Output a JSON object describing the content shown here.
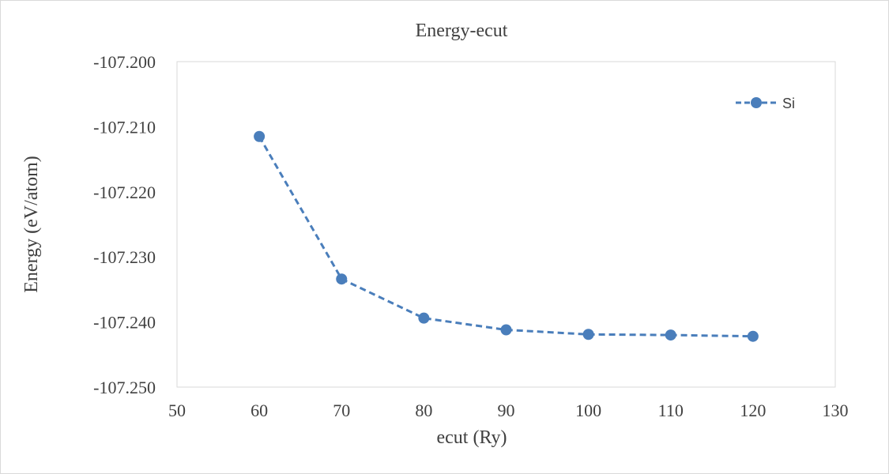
{
  "chart_data": {
    "type": "line",
    "title": "Energy-ecut",
    "xlabel": "ecut (Ry)",
    "ylabel": "Energy (eV/atom)",
    "xlim": [
      50,
      130
    ],
    "ylim": [
      -107.25,
      -107.2
    ],
    "x_ticks": [
      50,
      60,
      70,
      80,
      90,
      100,
      110,
      120,
      130
    ],
    "y_ticks": [
      -107.2,
      -107.21,
      -107.22,
      -107.23,
      -107.24,
      -107.25
    ],
    "x_tick_labels": [
      "50",
      "60",
      "70",
      "80",
      "90",
      "100",
      "110",
      "120",
      "130"
    ],
    "y_tick_labels": [
      "-107.200",
      "-107.210",
      "-107.220",
      "-107.230",
      "-107.240",
      "-107.250"
    ],
    "grid": false,
    "legend_position": "top-right",
    "series": [
      {
        "name": "Si",
        "color": "#4a7ebb",
        "line_style": "dashed",
        "marker": "circle",
        "x": [
          60,
          70,
          80,
          90,
          100,
          110,
          120
        ],
        "y": [
          -107.2115,
          -107.2334,
          -107.2394,
          -107.2412,
          -107.2419,
          -107.242,
          -107.2422
        ]
      }
    ]
  }
}
